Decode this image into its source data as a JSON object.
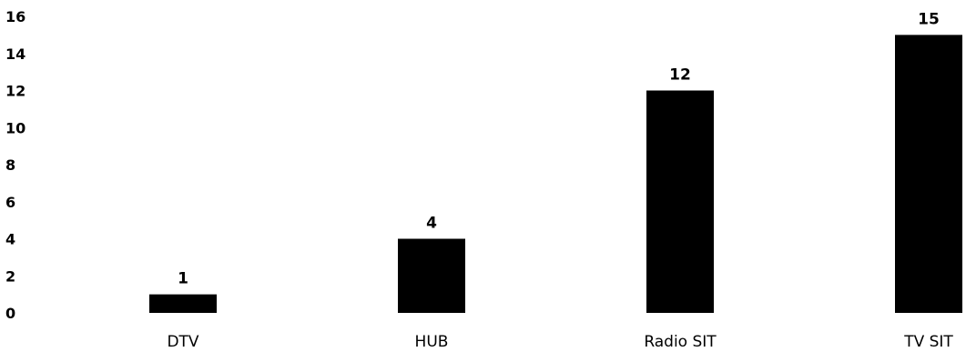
{
  "chart_data": {
    "type": "bar",
    "title": "",
    "xlabel": "",
    "ylabel": "",
    "categories": [
      "DTV",
      "HUB",
      "Radio SIT",
      "TV SIT"
    ],
    "values": [
      1,
      4,
      12,
      15
    ],
    "data_labels": [
      "1",
      "4",
      "12",
      "15"
    ],
    "ylim": [
      0,
      16
    ],
    "yticks": [
      0,
      2,
      4,
      6,
      8,
      10,
      12,
      14,
      16
    ],
    "grid": false,
    "legend": "none",
    "bar_color": "#000000"
  }
}
